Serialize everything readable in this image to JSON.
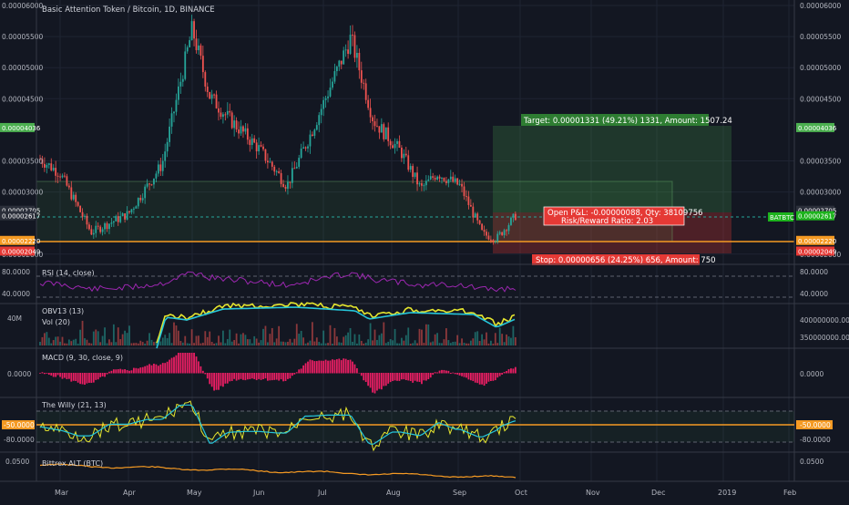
{
  "header": {
    "symbol_title": "Basic Attention Token / Bitcoin, 1D, BINANCE"
  },
  "price_axis": {
    "ticks": [
      "0.00006000",
      "0.00005500",
      "0.00005000",
      "0.00004500",
      "0.00003500",
      "0.00003000",
      "0.00002000"
    ],
    "tick_values": [
      6e-05,
      5.5e-05,
      5e-05,
      4.5e-05,
      3.5e-05,
      3e-05,
      2e-05
    ],
    "badges_right": [
      {
        "text": "0.00004036",
        "value": 4.036e-05,
        "color": "#4caf50"
      },
      {
        "text": "0.00002705",
        "value": 2.705e-05,
        "color": "#2b2f3a"
      },
      {
        "text": "0.00002617",
        "value": 2.617e-05,
        "color": "#1db31d"
      },
      {
        "text": "0.00002220",
        "value": 2.22e-05,
        "color": "#f59a23"
      },
      {
        "text": "0.00002049",
        "value": 2.049e-05,
        "color": "#e53935"
      }
    ],
    "badges_left": [
      {
        "text": "0.00004036",
        "value": 4.036e-05,
        "color": "#4caf50"
      },
      {
        "text": "0.00002705",
        "value": 2.705e-05,
        "color": "#2b2f3a"
      },
      {
        "text": "0.00002617",
        "value": 2.617e-05,
        "color": "#2b2f3a"
      },
      {
        "text": "0.00002220",
        "value": 2.22e-05,
        "color": "#f59a23"
      },
      {
        "text": "0.00002049",
        "value": 2.049e-05,
        "color": "#e53935"
      }
    ],
    "symbol_badge": "BATBTC"
  },
  "position_tool": {
    "target_label": "Target: 0.00001331 (49.21%) 1331, Amount: 1507.24",
    "open_pnl_label": "Open P&L: -0.00000088, Qty: 38109756",
    "risk_reward_label": "Risk/Reward Ratio: 2.03",
    "stop_label": "Stop: 0.00000656 (24.25%) 656, Amount: 750",
    "entry": 2.705e-05,
    "target": 4.036e-05,
    "stop": 2.049e-05
  },
  "panes": [
    {
      "id": "rsi",
      "label": "RSI (14, close)",
      "ticks": [
        "80.0000",
        "40.0000"
      ],
      "right_ticks": [
        "80.0000",
        "40.0000"
      ],
      "color": "#9c27b0"
    },
    {
      "id": "obv",
      "label_line1": "OBV13 (13)",
      "label_line2": "Vol (20)",
      "left_tick": "40M",
      "right_ticks": [
        "400000000.0000",
        "350000000.0000"
      ]
    },
    {
      "id": "macd",
      "label": "MACD (9, 30, close, 9)",
      "left_tick": "0.0000",
      "right_tick": "0.0000",
      "color": "#e91e63"
    },
    {
      "id": "willy",
      "label": "The Willy (21, 13)",
      "ticks": [
        "-50.0000",
        "-80.0000"
      ],
      "right_ticks": [
        "-50.0000",
        "-80.0000"
      ],
      "highlight_color": "#f59a23"
    },
    {
      "id": "alt",
      "label": "Bittrex ALT (BTC)",
      "left_tick": "0.0500",
      "right_tick": "0.0500",
      "color": "#f59a23"
    }
  ],
  "time_axis": {
    "labels": [
      "Mar",
      "Apr",
      "May",
      "Jun",
      "Jul",
      "Aug",
      "Sep",
      "Oct",
      "Nov",
      "Dec",
      "2019",
      "Feb"
    ]
  },
  "chart_data": {
    "type": "candlestick",
    "title": "Basic Attention Token / Bitcoin, 1D, BINANCE",
    "xlabel": "",
    "ylabel": "",
    "ylim": [
      1.85e-05,
      6e-05
    ],
    "monthly_closes": [
      {
        "x": "Mar",
        "y": 2.42e-05
      },
      {
        "x": "Apr",
        "y": 2.55e-05
      },
      {
        "x": "May",
        "y": 5.3e-05
      },
      {
        "x": "Jun",
        "y": 3.55e-05
      },
      {
        "x": "Jul",
        "y": 3.95e-05
      },
      {
        "x": "Aug",
        "y": 3.15e-05
      },
      {
        "x": "Sep",
        "y": 2.5e-05
      }
    ],
    "last_price": 2.617e-05
  },
  "colors": {
    "up": "#26a69a",
    "down": "#ef5350",
    "background": "#131722",
    "grid": "#1f2433",
    "axis_text": "#b2b5be"
  }
}
